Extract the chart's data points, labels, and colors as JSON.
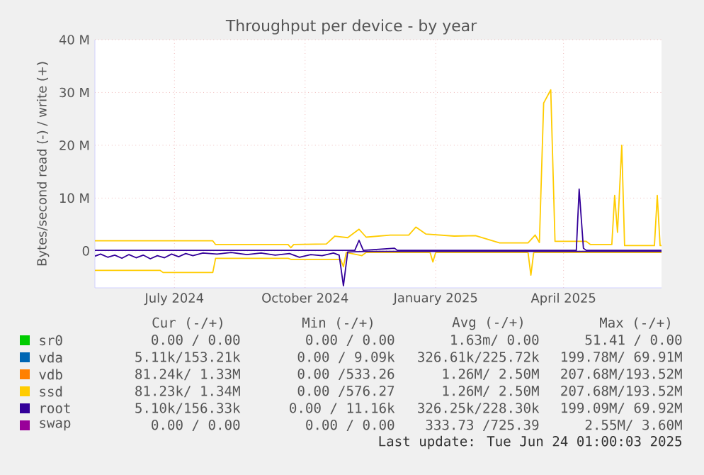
{
  "chart_data": {
    "type": "line",
    "title": "Throughput per device - by year",
    "ylabel": "Bytes/second read (-) / write (+)",
    "xlim": [
      "2024-05-21",
      "2025-06-24"
    ],
    "xticks": [
      {
        "value": "2024-07-16",
        "label": "July 2024"
      },
      {
        "value": "2024-10-16",
        "label": "October 2024"
      },
      {
        "value": "2025-01-16",
        "label": "January 2025"
      },
      {
        "value": "2025-04-16",
        "label": "April 2025"
      }
    ],
    "ylim": [
      -7,
      40
    ],
    "yticks": [
      0,
      {
        "value": 10,
        "label": "10 M"
      },
      {
        "value": 20,
        "label": "20 M"
      },
      {
        "value": 30,
        "label": "30 M"
      },
      {
        "value": 40,
        "label": "40 M"
      }
    ],
    "grid": true,
    "legend": "bottom",
    "series": [
      {
        "name": "sr0",
        "color": "#00cc00"
      },
      {
        "name": "vda",
        "color": "#0066b3"
      },
      {
        "name": "vdb",
        "color": "#ff8000"
      },
      {
        "name": "ssd",
        "color": "#ffcc00",
        "x": [
          "2024-05-21",
          "2024-08-12",
          "2024-08-14",
          "2024-10-04",
          "2024-10-06",
          "2024-10-08",
          "2024-10-31",
          "2024-11-06",
          "2024-11-15",
          "2024-11-23",
          "2024-11-28",
          "2024-12-15",
          "2024-12-28",
          "2025-01-02",
          "2025-01-09",
          "2025-01-29",
          "2025-02-13",
          "2025-03-02",
          "2025-03-22",
          "2025-03-27",
          "2025-03-30",
          "2025-04-02",
          "2025-04-07",
          "2025-04-10",
          "2025-05-02",
          "2025-05-05",
          "2025-05-20",
          "2025-05-22",
          "2025-05-24",
          "2025-05-27",
          "2025-05-29",
          "2025-06-19",
          "2025-06-21",
          "2025-06-23",
          "2025-06-24"
        ],
        "values": [
          1.9,
          1.9,
          1.2,
          1.2,
          0.6,
          1.2,
          1.3,
          2.8,
          2.5,
          4.1,
          2.6,
          3.0,
          3.0,
          4.5,
          3.2,
          2.8,
          2.9,
          1.5,
          1.5,
          3.0,
          1.6,
          28,
          30.5,
          1.8,
          1.8,
          1.2,
          1.2,
          10.5,
          3.5,
          20,
          1.0,
          1.0,
          10.5,
          1.0,
          1.0
        ]
      },
      {
        "color": "#ffcc00",
        "x": [
          "2024-05-21",
          "2024-07-06",
          "2024-07-08",
          "2024-08-12",
          "2024-08-14",
          "2024-10-04",
          "2024-10-06",
          "2024-11-10",
          "2024-11-12",
          "2024-11-14",
          "2024-11-25",
          "2024-11-28",
          "2025-01-12",
          "2025-01-14",
          "2025-01-16",
          "2025-03-22",
          "2025-03-24",
          "2025-03-26",
          "2025-06-24"
        ],
        "values": [
          -3.7,
          -3.7,
          -4.1,
          -4.1,
          -1.4,
          -1.4,
          -1.6,
          -1.6,
          -3,
          -0.3,
          -0.9,
          -0.3,
          -0.3,
          -2.1,
          -0.3,
          -0.3,
          -4.6,
          -0.3,
          -0.3
        ]
      },
      {
        "name": "root",
        "color": "#330099",
        "x": [
          "2024-05-21",
          "2024-11-20",
          "2024-11-23",
          "2024-11-26",
          "2024-12-18",
          "2024-12-20",
          "2025-04-25",
          "2025-04-27",
          "2025-04-30",
          "2025-05-02",
          "2025-06-24"
        ],
        "values": [
          0.1,
          0.1,
          2.0,
          0.1,
          0.5,
          0.1,
          0.1,
          11.7,
          0.5,
          0.1,
          0.1
        ]
      },
      {
        "color": "#330099",
        "x": [
          "2024-05-21",
          "2024-05-25",
          "2024-05-30",
          "2024-06-04",
          "2024-06-09",
          "2024-06-14",
          "2024-06-19",
          "2024-06-24",
          "2024-06-29",
          "2024-07-04",
          "2024-07-09",
          "2024-07-14",
          "2024-07-19",
          "2024-07-24",
          "2024-07-29",
          "2024-08-05",
          "2024-08-15",
          "2024-08-25",
          "2024-09-05",
          "2024-09-15",
          "2024-09-25",
          "2024-10-05",
          "2024-10-12",
          "2024-10-20",
          "2024-10-28",
          "2024-11-05",
          "2024-11-09",
          "2024-11-12",
          "2024-11-15",
          "2024-12-01",
          "2025-06-24"
        ],
        "values": [
          -1.0,
          -0.6,
          -1.2,
          -0.8,
          -1.4,
          -0.7,
          -1.3,
          -0.8,
          -1.5,
          -0.9,
          -1.3,
          -0.6,
          -1.1,
          -0.5,
          -0.9,
          -0.4,
          -0.6,
          -0.3,
          -0.7,
          -0.4,
          -0.8,
          -0.5,
          -1.2,
          -0.7,
          -0.9,
          -0.4,
          -0.8,
          -6.6,
          -0.2,
          -0.1,
          -0.1
        ]
      },
      {
        "name": "swap",
        "color": "#990099"
      }
    ],
    "annotations": [
      "Cur (-/+)",
      "Min (-/+)",
      "Avg (-/+)",
      "Max (-/+)",
      "0.00 / 0.00",
      "0.00 / 0.00",
      "1.63m/ 0.00",
      "51.41 / 0.00",
      "5.11k/153.21k",
      "0.00 / 9.09k",
      "326.61k/225.72k",
      "199.78M/ 69.91M",
      "81.24k/ 1.33M",
      "0.00 /533.26",
      "1.26M/ 2.50M",
      "207.68M/193.52M",
      "81.23k/ 1.34M",
      "0.00 /576.27",
      "1.26M/ 2.50M",
      "207.68M/193.52M",
      "5.10k/156.33k",
      "0.00 / 11.16k",
      "326.25k/228.30k",
      "199.09M/ 69.92M",
      "0.00 / 0.00",
      "0.00 / 0.00",
      "333.73 /725.39",
      "2.55M/ 3.60M",
      "Last update: Tue Jun 24 01:00:03 2025"
    ]
  }
}
